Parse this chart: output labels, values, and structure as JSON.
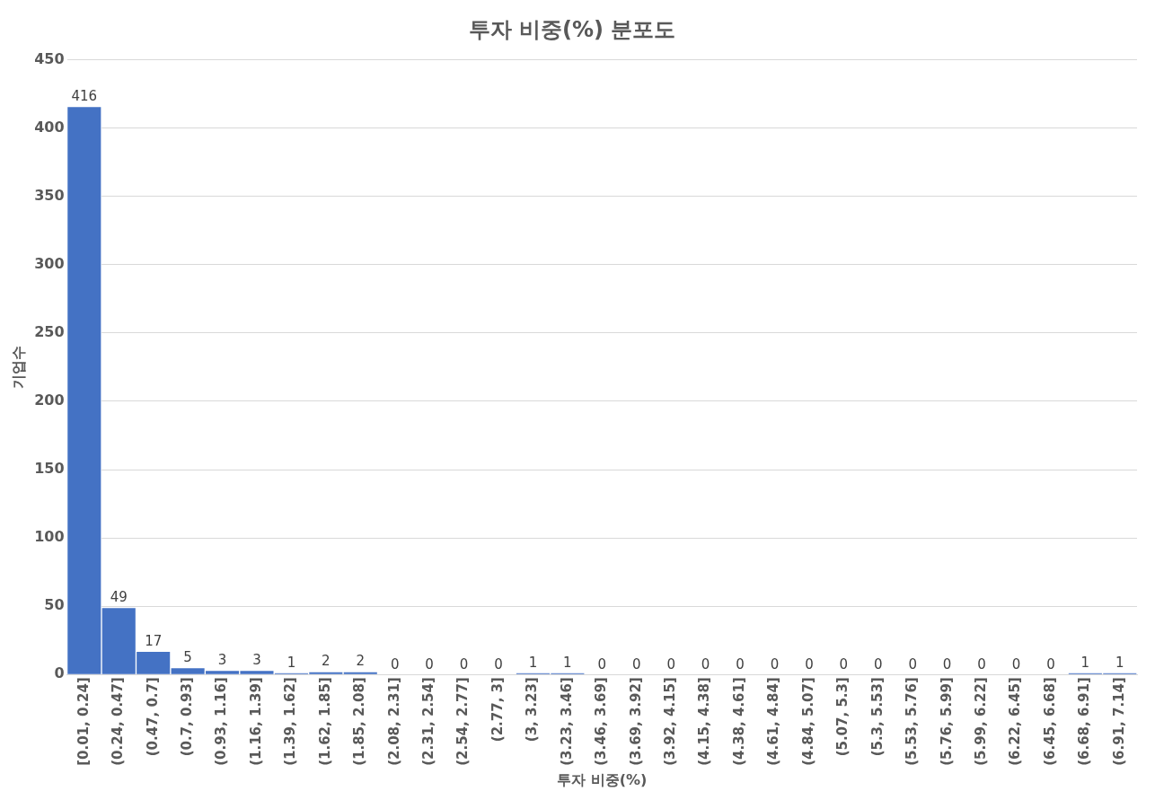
{
  "chart_data": {
    "type": "bar",
    "title": "투자 비중(%) 분포도",
    "xlabel": "투자 비중(%)",
    "ylabel": "기업수",
    "categories": [
      "[0.01, 0.24]",
      "(0.24, 0.47]",
      "(0.47, 0.7]",
      "(0.7, 0.93]",
      "(0.93, 1.16]",
      "(1.16, 1.39]",
      "(1.39, 1.62]",
      "(1.62, 1.85]",
      "(1.85, 2.08]",
      "(2.08, 2.31]",
      "(2.31, 2.54]",
      "(2.54, 2.77]",
      "(2.77, 3]",
      "(3, 3.23]",
      "(3.23, 3.46]",
      "(3.46, 3.69]",
      "(3.69, 3.92]",
      "(3.92, 4.15]",
      "(4.15, 4.38]",
      "(4.38, 4.61]",
      "(4.61, 4.84]",
      "(4.84, 5.07]",
      "(5.07, 5.3]",
      "(5.3, 5.53]",
      "(5.53, 5.76]",
      "(5.76, 5.99]",
      "(5.99, 6.22]",
      "(6.22, 6.45]",
      "(6.45, 6.68]",
      "(6.68, 6.91]",
      "(6.91, 7.14]"
    ],
    "values": [
      416,
      49,
      17,
      5,
      3,
      3,
      1,
      2,
      2,
      0,
      0,
      0,
      0,
      1,
      1,
      0,
      0,
      0,
      0,
      0,
      0,
      0,
      0,
      0,
      0,
      0,
      0,
      0,
      0,
      1,
      1
    ],
    "color": "#4472c4",
    "ylim": [
      0,
      450
    ],
    "yticks": [
      0,
      50,
      100,
      150,
      200,
      250,
      300,
      350,
      400,
      450
    ],
    "grid": "y",
    "data_labels": true
  }
}
